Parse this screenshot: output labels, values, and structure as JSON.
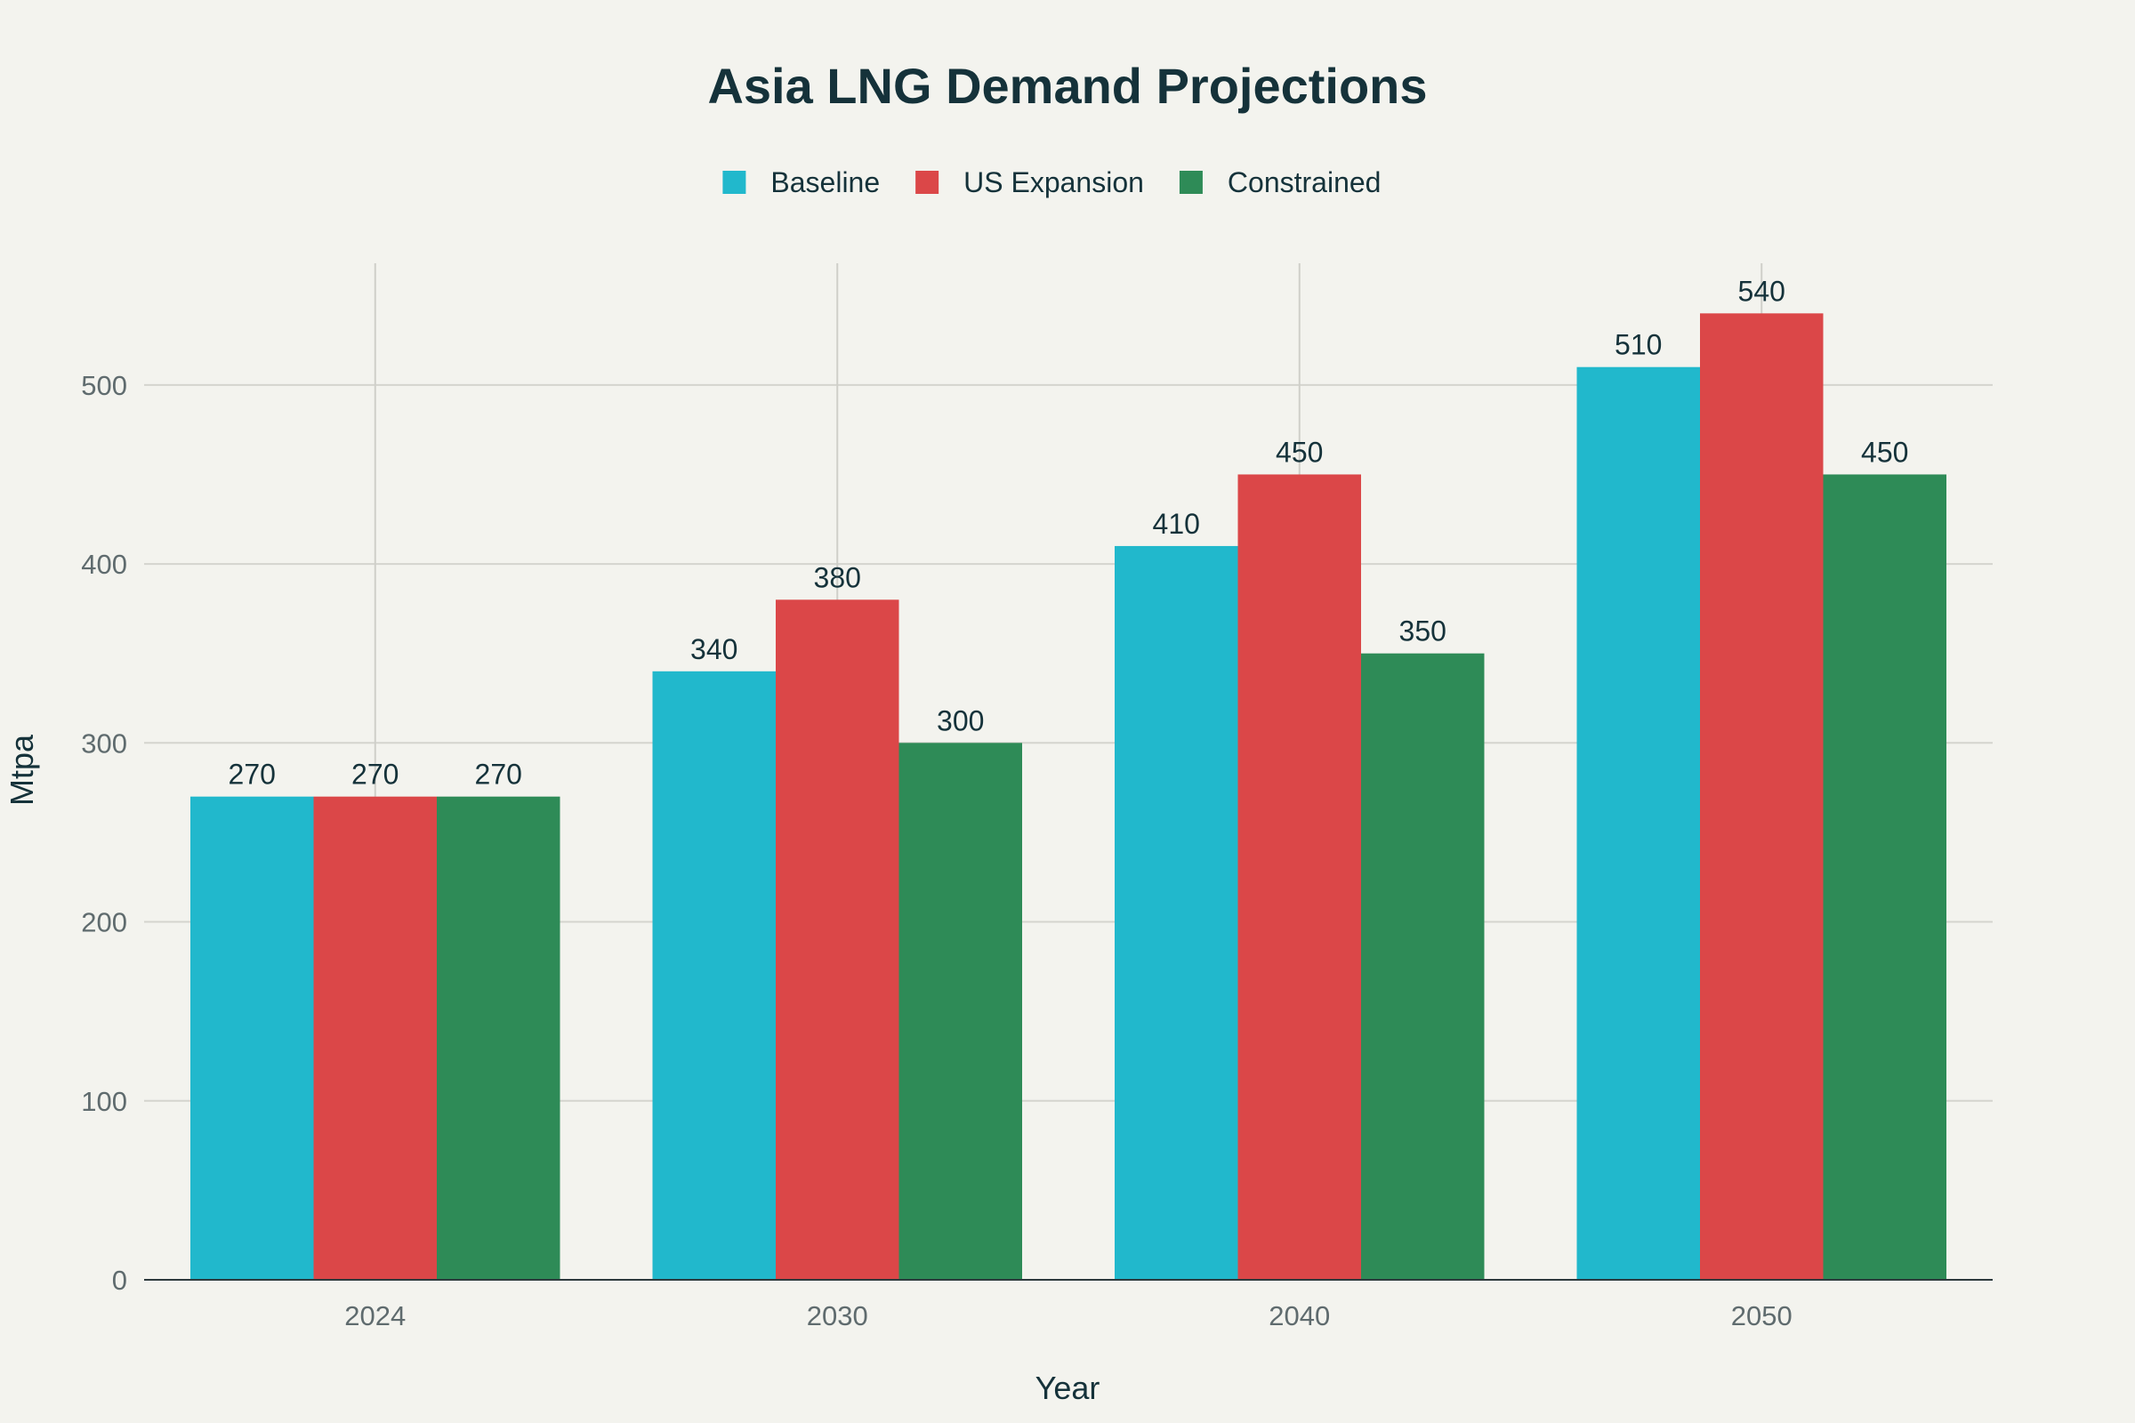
{
  "chart_data": {
    "type": "bar",
    "title": "Asia LNG Demand Projections",
    "xlabel": "Year",
    "ylabel": "Mtpa",
    "categories": [
      "2024",
      "2030",
      "2040",
      "2050"
    ],
    "series": [
      {
        "name": "Baseline",
        "color": "#21b8cc",
        "values": [
          270,
          340,
          410,
          510
        ]
      },
      {
        "name": "US Expansion",
        "color": "#db4748",
        "values": [
          270,
          380,
          450,
          540
        ]
      },
      {
        "name": "Constrained",
        "color": "#2e8b57",
        "values": [
          270,
          300,
          350,
          450
        ]
      }
    ],
    "ylim": [
      0,
      568
    ],
    "yticks": [
      0,
      100,
      200,
      300,
      400,
      500
    ],
    "grid": true,
    "legend_position": "top-center",
    "background": "#f3f3ee"
  }
}
